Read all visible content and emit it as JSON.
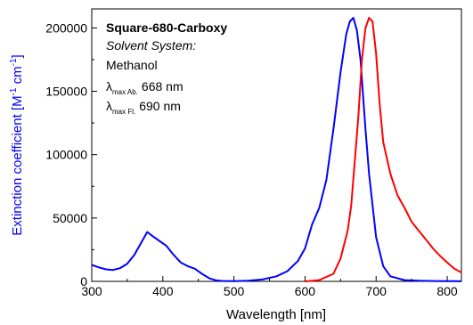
{
  "chart_data": {
    "type": "line",
    "title": "",
    "xlabel": "Wavelength [nm]",
    "ylabel": {
      "main": "Extinction coefficient [M",
      "sup1": "-1",
      "mid": " cm",
      "sup2": "-1",
      "end": "]"
    },
    "xlim": [
      300,
      820
    ],
    "ylim": [
      0,
      215000
    ],
    "x_ticks": [
      300,
      400,
      500,
      600,
      700,
      800
    ],
    "x_tick_labels": [
      "300",
      "400",
      "500",
      "600",
      "700",
      "800"
    ],
    "y_ticks": [
      0,
      50000,
      100000,
      150000,
      200000
    ],
    "y_tick_labels": [
      "0",
      "50000",
      "100000",
      "150000",
      "200000"
    ],
    "grid": false,
    "colors": {
      "absorption": "#0000ff",
      "fluorescence": "#ff0000",
      "axis": "#000000",
      "ylabel": "#0000ff"
    },
    "annotations": {
      "compound": "Square-680-Carboxy",
      "solvent_label": "Solvent System:",
      "solvent": "Methanol",
      "abs_symbol": "λ",
      "abs_sub": "max Ab.",
      "abs_value": "668 nm",
      "fl_symbol": "λ",
      "fl_sub": "max Fl.",
      "fl_value": "690 nm"
    },
    "series": [
      {
        "role": "absorption",
        "x": [
          300,
          310,
          320,
          330,
          340,
          350,
          360,
          370,
          378,
          385,
          395,
          405,
          415,
          425,
          435,
          445,
          455,
          465,
          475,
          485,
          500,
          520,
          540,
          560,
          575,
          590,
          600,
          610,
          620,
          630,
          640,
          650,
          658,
          663,
          668,
          673,
          678,
          685,
          690,
          700,
          710,
          720,
          740,
          760,
          780,
          800,
          820
        ],
        "y": [
          13000,
          11000,
          9500,
          9000,
          10500,
          14000,
          21000,
          31000,
          39000,
          36000,
          32000,
          28000,
          21000,
          15000,
          12000,
          10000,
          6000,
          2500,
          800,
          300,
          200,
          500,
          1500,
          4000,
          8000,
          16000,
          26000,
          45000,
          58000,
          80000,
          120000,
          165000,
          195000,
          205000,
          208000,
          198000,
          175000,
          120000,
          85000,
          35000,
          12000,
          4000,
          1000,
          500,
          300,
          200,
          100
        ]
      },
      {
        "role": "fluorescence",
        "x": [
          600,
          620,
          640,
          650,
          660,
          665,
          670,
          675,
          680,
          685,
          690,
          695,
          700,
          705,
          710,
          720,
          730,
          740,
          750,
          760,
          770,
          780,
          790,
          800,
          810,
          820
        ],
        "y": [
          0,
          1000,
          6000,
          18000,
          40000,
          60000,
          95000,
          130000,
          175000,
          200000,
          208000,
          205000,
          180000,
          140000,
          110000,
          85000,
          68000,
          58000,
          47000,
          40000,
          33000,
          26000,
          20000,
          15000,
          10000,
          7000
        ]
      }
    ]
  }
}
